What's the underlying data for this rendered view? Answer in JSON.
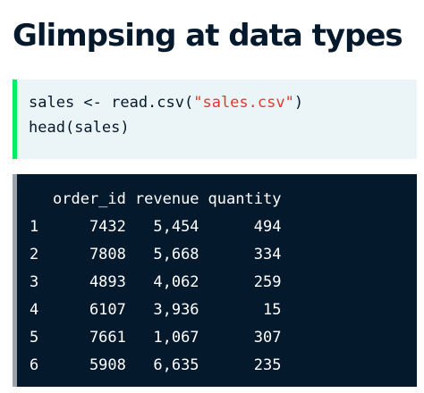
{
  "title": "Glimpsing at data types",
  "code": {
    "line1_prefix": "sales <- read.csv(",
    "line1_string": "\"sales.csv\"",
    "line1_suffix": ")",
    "line2": "head(sales)"
  },
  "output": {
    "columns": [
      "order_id",
      "revenue",
      "quantity"
    ],
    "rows": [
      {
        "index": "1",
        "order_id": "7432",
        "revenue": "5,454",
        "quantity": "494"
      },
      {
        "index": "2",
        "order_id": "7808",
        "revenue": "5,668",
        "quantity": "334"
      },
      {
        "index": "3",
        "order_id": "4893",
        "revenue": "4,062",
        "quantity": "259"
      },
      {
        "index": "4",
        "order_id": "6107",
        "revenue": "3,936",
        "quantity": "15"
      },
      {
        "index": "5",
        "order_id": "7661",
        "revenue": "1,067",
        "quantity": "307"
      },
      {
        "index": "6",
        "order_id": "5908",
        "revenue": "6,635",
        "quantity": "235"
      }
    ]
  },
  "colors": {
    "accent": "#03ef62",
    "string": "#dd3b2c",
    "console_bg": "#05192d",
    "code_bg": "#ebf4f7"
  }
}
